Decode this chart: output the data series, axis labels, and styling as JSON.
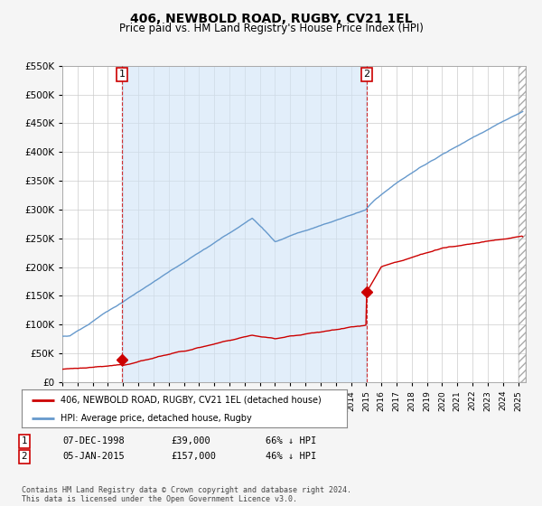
{
  "title": "406, NEWBOLD ROAD, RUGBY, CV21 1EL",
  "subtitle": "Price paid vs. HM Land Registry's House Price Index (HPI)",
  "ylim": [
    0,
    550000
  ],
  "ytick_vals": [
    0,
    50000,
    100000,
    150000,
    200000,
    250000,
    300000,
    350000,
    400000,
    450000,
    500000,
    550000
  ],
  "hpi_color": "#6699cc",
  "hpi_fill_color": "#d0e4f7",
  "price_color": "#cc0000",
  "marker1_date": 1998.92,
  "marker1_price": 39000,
  "marker2_date": 2015.03,
  "marker2_price": 157000,
  "annotation1": {
    "num": "1",
    "date": "07-DEC-1998",
    "price": "£39,000",
    "note": "66% ↓ HPI"
  },
  "annotation2": {
    "num": "2",
    "date": "05-JAN-2015",
    "price": "£157,000",
    "note": "46% ↓ HPI"
  },
  "legend_label1": "406, NEWBOLD ROAD, RUGBY, CV21 1EL (detached house)",
  "legend_label2": "HPI: Average price, detached house, Rugby",
  "footnote": "Contains HM Land Registry data © Crown copyright and database right 2024.\nThis data is licensed under the Open Government Licence v3.0.",
  "bg_color": "#f5f5f5",
  "plot_bg_color": "#ffffff",
  "grid_color": "#cccccc",
  "xlim_start": 1995,
  "xlim_end": 2025.5
}
